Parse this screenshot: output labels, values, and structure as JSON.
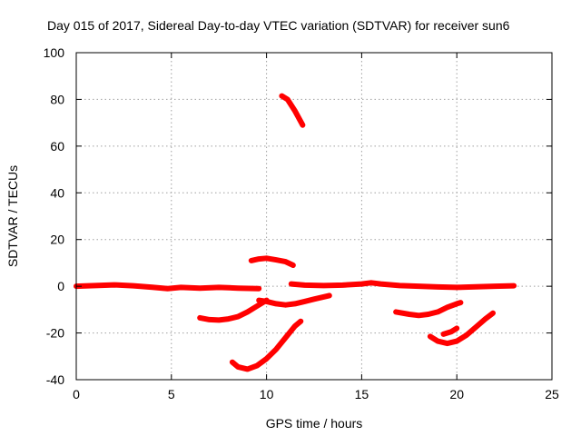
{
  "chart_data": {
    "type": "line",
    "title": "Day 015 of 2017, Sidereal Day-to-day VTEC variation (SDTVAR) for receiver sun6",
    "xlabel": "GPS time / hours",
    "ylabel": "SDTVAR / TECUs",
    "xlim": [
      0,
      25
    ],
    "ylim": [
      -40,
      100
    ],
    "xticks": [
      0,
      5,
      10,
      15,
      20,
      25
    ],
    "yticks": [
      -40,
      -20,
      0,
      20,
      40,
      60,
      80,
      100
    ],
    "grid": true,
    "legend": "none",
    "series_color": "#ff0000",
    "series": [
      {
        "name": "arc-1",
        "x": [
          0,
          1,
          2,
          3,
          4,
          4.8,
          5.5,
          6.5,
          7.5,
          8.5,
          9.6
        ],
        "y": [
          0,
          0.3,
          0.6,
          0.2,
          -0.4,
          -1,
          -0.5,
          -0.8,
          -0.5,
          -0.8,
          -1
        ]
      },
      {
        "name": "arc-2",
        "x": [
          11.3,
          12,
          13,
          14,
          15,
          15.5,
          16,
          17,
          18,
          19,
          20,
          21,
          22,
          23
        ],
        "y": [
          1,
          0.5,
          0.3,
          0.5,
          1,
          1.5,
          1,
          0.3,
          0,
          -0.3,
          -0.5,
          -0.2,
          0,
          0.2
        ]
      },
      {
        "name": "arc-3",
        "x": [
          10.8,
          11.1,
          11.5,
          11.9
        ],
        "y": [
          81.5,
          80,
          75,
          69
        ]
      },
      {
        "name": "arc-4",
        "x": [
          9.2,
          9.6,
          10,
          10.5,
          11,
          11.4
        ],
        "y": [
          11,
          11.7,
          12,
          11.3,
          10.5,
          9
        ]
      },
      {
        "name": "arc-5",
        "x": [
          9.6,
          10,
          10.5,
          11,
          11.5,
          12,
          12.5,
          13.3
        ],
        "y": [
          -6,
          -6.5,
          -7.5,
          -8,
          -7.5,
          -6.5,
          -5.5,
          -4
        ]
      },
      {
        "name": "arc-6",
        "x": [
          6.5,
          7,
          7.5,
          8,
          8.5,
          9,
          9.5,
          10
        ],
        "y": [
          -13.5,
          -14.3,
          -14.5,
          -14,
          -13,
          -11,
          -8.5,
          -6
        ]
      },
      {
        "name": "arc-7",
        "x": [
          8.2,
          8.5,
          9,
          9.5,
          10,
          10.5,
          11,
          11.5,
          11.8
        ],
        "y": [
          -32.5,
          -34.5,
          -35.5,
          -34,
          -31,
          -27,
          -22,
          -17,
          -15
        ]
      },
      {
        "name": "arc-8",
        "x": [
          16.8,
          17.5,
          18,
          18.5,
          19,
          19.5,
          20,
          20.2
        ],
        "y": [
          -11,
          -12,
          -12.5,
          -12,
          -11,
          -9,
          -7.5,
          -7
        ]
      },
      {
        "name": "arc-9",
        "x": [
          18.6,
          19,
          19.5,
          20,
          20.5,
          21,
          21.5,
          21.9
        ],
        "y": [
          -21.5,
          -23.5,
          -24.5,
          -23.5,
          -21,
          -17.5,
          -14,
          -11.5
        ]
      },
      {
        "name": "arc-10",
        "x": [
          19.3,
          19.7,
          20
        ],
        "y": [
          -20.5,
          -19.5,
          -18
        ]
      }
    ]
  }
}
